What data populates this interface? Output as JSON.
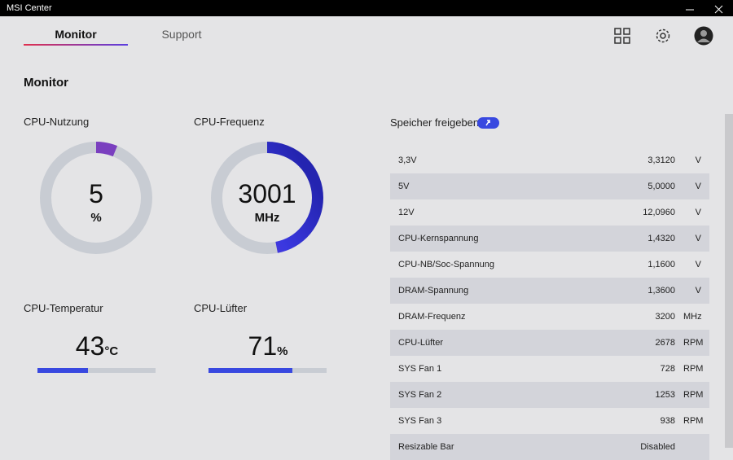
{
  "window": {
    "title": "MSI Center"
  },
  "tabs": [
    "Monitor",
    "Support"
  ],
  "heading": "Monitor",
  "gauges": [
    {
      "label": "CPU-Nutzung",
      "value": 5,
      "unit": "%"
    },
    {
      "label": "CPU-Frequenz",
      "value": 3001,
      "unit": "MHz"
    }
  ],
  "meters": [
    {
      "label": "CPU-Temperatur",
      "value": 43,
      "unit": "°C"
    },
    {
      "label": "CPU-Lüfter",
      "value": 71,
      "unit": "%"
    }
  ],
  "memory_button": "Speicher freigeben",
  "table": {
    "rows": [
      [
        "3,3V",
        "3,3120",
        "V"
      ],
      [
        "5V",
        "5,0000",
        "V"
      ],
      [
        "12V",
        "12,0960",
        "V"
      ],
      [
        "CPU-Kernspannung",
        "1,4320",
        "V"
      ],
      [
        "CPU-NB/Soc-Spannung",
        "1,1600",
        "V"
      ],
      [
        "DRAM-Spannung",
        "1,3600",
        "V"
      ],
      [
        "DRAM-Frequenz",
        "3200",
        "MHz"
      ],
      [
        "CPU-Lüfter",
        "2678",
        "RPM"
      ],
      [
        "SYS Fan 1",
        "728",
        "RPM"
      ],
      [
        "SYS Fan 2",
        "1253",
        "RPM"
      ],
      [
        "SYS Fan 3",
        "938",
        "RPM"
      ],
      [
        "Resizable Bar",
        "Disabled",
        ""
      ]
    ]
  }
}
